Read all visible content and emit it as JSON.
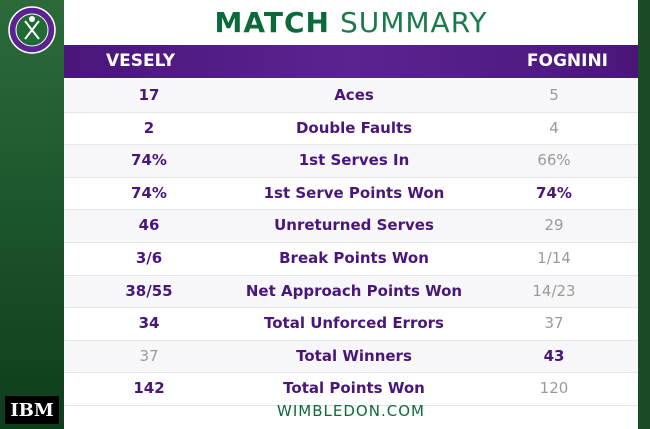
{
  "brand": {
    "logo_text": "THE CHAMPIONSHIPS WIMBLEDON",
    "sponsor": "IBM"
  },
  "header": {
    "title_bold": "MATCH",
    "title_normal": "SUMMARY",
    "player1": "VESELY",
    "player2": "FOGNINI"
  },
  "stats": [
    {
      "label": "Aces",
      "p1": "17",
      "p2": "5",
      "winner": "p1"
    },
    {
      "label": "Double Faults",
      "p1": "2",
      "p2": "4",
      "winner": "p1"
    },
    {
      "label": "1st Serves In",
      "p1": "74%",
      "p2": "66%",
      "winner": "p1"
    },
    {
      "label": "1st Serve Points Won",
      "p1": "74%",
      "p2": "74%",
      "winner": "tie"
    },
    {
      "label": "Unreturned Serves",
      "p1": "46",
      "p2": "29",
      "winner": "p1"
    },
    {
      "label": "Break Points Won",
      "p1": "3/6",
      "p2": "1/14",
      "winner": "p1"
    },
    {
      "label": "Net Approach Points Won",
      "p1": "38/55",
      "p2": "14/23",
      "winner": "p1"
    },
    {
      "label": "Total Unforced Errors",
      "p1": "34",
      "p2": "37",
      "winner": "p1"
    },
    {
      "label": "Total Winners",
      "p1": "37",
      "p2": "43",
      "winner": "p2"
    },
    {
      "label": "Total Points Won",
      "p1": "142",
      "p2": "120",
      "winner": "p1"
    }
  ],
  "footer": {
    "site": "WIMBLEDON.COM"
  },
  "colors": {
    "purple": "#4a167a",
    "green": "#0b6a3a",
    "muted": "#9a9a9a"
  }
}
